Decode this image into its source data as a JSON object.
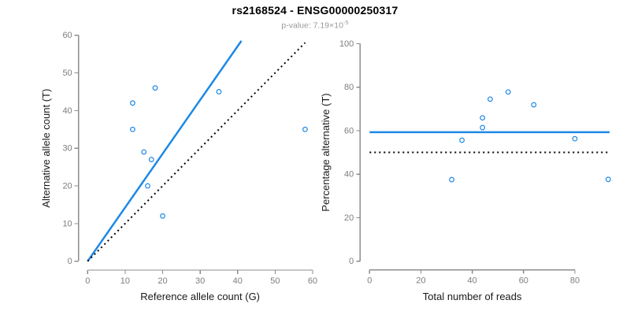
{
  "header": {
    "title": "rs2168524 - ENSG00000250317",
    "pvalue_text": "p-value: 7.19×10",
    "pvalue_exponent": "-5"
  },
  "colors": {
    "accent_blue": "#1E88E5",
    "dotted_line": "#000000",
    "axis": "#8C8C8C",
    "tick_label": "#7D7D7D",
    "axis_title": "#1A1A1A",
    "background": "#FFFFFF"
  },
  "chart_data": [
    {
      "type": "scatter",
      "panel": "allele-counts",
      "title": "",
      "xlabel": "Reference allele count (G)",
      "ylabel": "Alternative allele count (T)",
      "xlim": [
        0,
        60
      ],
      "ylim": [
        0,
        60
      ],
      "xticks": [
        0,
        10,
        20,
        30,
        40,
        50,
        60
      ],
      "yticks": [
        0,
        10,
        20,
        30,
        40,
        50,
        60
      ],
      "grid": false,
      "legend": "none",
      "points": [
        {
          "x": 12,
          "y": 35
        },
        {
          "x": 12,
          "y": 42
        },
        {
          "x": 15,
          "y": 29
        },
        {
          "x": 16,
          "y": 20
        },
        {
          "x": 17,
          "y": 27
        },
        {
          "x": 18,
          "y": 46
        },
        {
          "x": 20,
          "y": 12
        },
        {
          "x": 35,
          "y": 45
        },
        {
          "x": 58,
          "y": 35
        }
      ],
      "lines": [
        {
          "name": "fitted-allelic-ratio-line",
          "style": "solid",
          "color_key": "accent_blue",
          "from": {
            "x": 0,
            "y": 0
          },
          "to": {
            "x": 41,
            "y": 58.5
          },
          "width": 2.5
        },
        {
          "name": "identity-line",
          "style": "dotted",
          "color_key": "dotted_line",
          "from": {
            "x": 0,
            "y": 0
          },
          "to": {
            "x": 58,
            "y": 58
          },
          "width": 2
        }
      ]
    },
    {
      "type": "scatter",
      "panel": "percentage-vs-coverage",
      "title": "",
      "xlabel": "Total number of reads",
      "ylabel": "Percentage alternative (T)",
      "xlim": [
        0,
        95
      ],
      "ylim": [
        0,
        100
      ],
      "xticks": [
        0,
        20,
        40,
        60,
        80
      ],
      "yticks": [
        0,
        20,
        40,
        60,
        80,
        100
      ],
      "grid": false,
      "legend": "none",
      "points": [
        {
          "x": 32,
          "y": 37.5
        },
        {
          "x": 36,
          "y": 55.6
        },
        {
          "x": 44,
          "y": 61.4
        },
        {
          "x": 44,
          "y": 65.9
        },
        {
          "x": 47,
          "y": 74.5
        },
        {
          "x": 54,
          "y": 77.8
        },
        {
          "x": 64,
          "y": 71.9
        },
        {
          "x": 80,
          "y": 56.3
        },
        {
          "x": 93,
          "y": 37.6
        }
      ],
      "lines": [
        {
          "name": "mean-percentage-line",
          "style": "solid",
          "color_key": "accent_blue",
          "from": {
            "x": 0,
            "y": 59.3
          },
          "to": {
            "x": 93.5,
            "y": 59.3
          },
          "width": 2.5
        },
        {
          "name": "fifty-percent-line",
          "style": "dotted",
          "color_key": "dotted_line",
          "from": {
            "x": 0,
            "y": 50
          },
          "to": {
            "x": 93,
            "y": 50
          },
          "width": 2
        }
      ]
    }
  ]
}
